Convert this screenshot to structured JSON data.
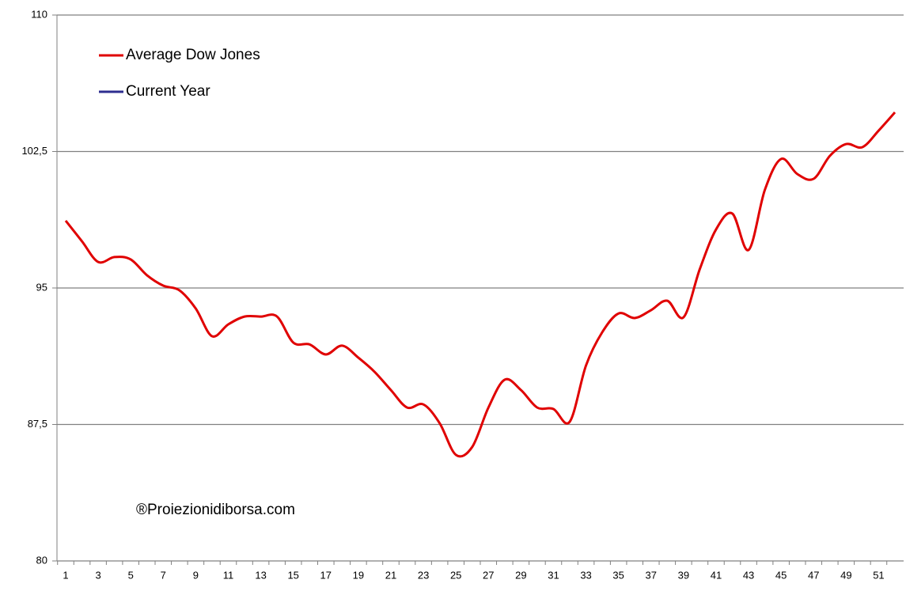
{
  "chart_data": {
    "type": "line",
    "categories": [
      1,
      null,
      3,
      null,
      5,
      null,
      7,
      null,
      9,
      null,
      11,
      null,
      13,
      null,
      15,
      null,
      17,
      null,
      19,
      null,
      21,
      null,
      23,
      null,
      25,
      null,
      27,
      null,
      29,
      null,
      31,
      null,
      33,
      null,
      35,
      null,
      37,
      null,
      39,
      null,
      41,
      null,
      43,
      null,
      45,
      null,
      47,
      null,
      49,
      null,
      51,
      null
    ],
    "series": [
      {
        "name": "Average Dow Jones",
        "color": "#e00000",
        "values": [
          98.7,
          97.57,
          96.43,
          96.7,
          96.57,
          95.7,
          95.13,
          94.87,
          93.87,
          92.35,
          93.0,
          93.43,
          93.43,
          93.43,
          92.0,
          91.9,
          91.35,
          91.83,
          91.17,
          90.39,
          89.39,
          88.43,
          88.6,
          87.57,
          85.83,
          86.26,
          88.43,
          89.96,
          89.39,
          88.43,
          88.35,
          87.65,
          90.74,
          92.57,
          93.6,
          93.35,
          93.78,
          94.3,
          93.39,
          96.04,
          98.22,
          99.09,
          97.09,
          100.39,
          102.09,
          101.26,
          101.0,
          102.26,
          102.91,
          102.74,
          103.65,
          104.65
        ]
      },
      {
        "name": "Current Year",
        "color": "#2e2e8f",
        "values": [
          null,
          null,
          null,
          null,
          null,
          null,
          null,
          null,
          null,
          null,
          null,
          null,
          null,
          null,
          null,
          null,
          null,
          null,
          null,
          null,
          null,
          null,
          null,
          null,
          null,
          null,
          null,
          null,
          null,
          null,
          null,
          null,
          null,
          null,
          null,
          null,
          null,
          null,
          null,
          null,
          null,
          null,
          null,
          null,
          null,
          null,
          null,
          null,
          null,
          null,
          null,
          null
        ]
      }
    ],
    "ylim": [
      80,
      110
    ],
    "yticks": [
      80,
      {
        "value": 87.5,
        "label": "87,5"
      },
      95,
      {
        "value": 102.5,
        "label": "102,5"
      },
      110
    ],
    "grid": true,
    "annotation": "®Proiezionidiborsa.com"
  }
}
